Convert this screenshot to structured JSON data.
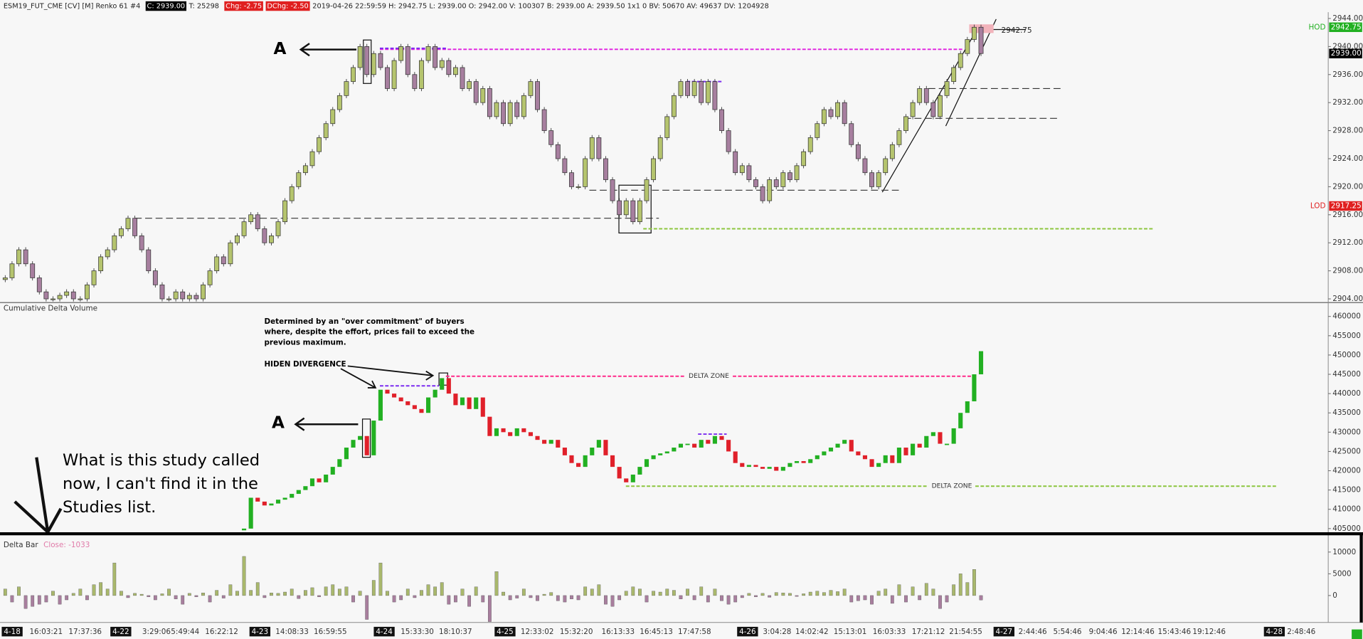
{
  "header": [
    {
      "text": "ESM19_FUT_CME [CV] [M]  Renko 61  #4"
    },
    {
      "text": "C: 2939.00",
      "badge": "#000000"
    },
    {
      "text": "T: 25298"
    },
    {
      "text": "Chg: -2.75",
      "badge": "#e02020"
    },
    {
      "text": "DChg: -2.50",
      "badge": "#e02020"
    },
    {
      "text": "2019-04-26 22:59:59  H: 2942.75  L: 2939.00  O: 2942.00  V: 100307  B: 2939.00  A: 2939.50  1x1 0  BV: 50670  AV: 49637  DV: 1204928"
    }
  ],
  "chart_data": [
    {
      "type": "renko",
      "up_color": "#b5c46e",
      "down_color": "#a77f9f",
      "ylim": [
        2903.6,
        2944.9
      ],
      "yticks": [
        {
          "value": 2944,
          "label": "2944.00"
        },
        {
          "value": 2940,
          "label": "2940.00"
        },
        {
          "value": 2936,
          "label": "2936.00"
        },
        {
          "value": 2932,
          "label": "2932.00"
        },
        {
          "value": 2928,
          "label": "2928.00"
        },
        {
          "value": 2924,
          "label": "2924.00"
        },
        {
          "value": 2920,
          "label": "2920.00"
        },
        {
          "value": 2916,
          "label": "2916.00"
        },
        {
          "value": 2912,
          "label": "2912.00"
        },
        {
          "value": 2908,
          "label": "2908.00"
        },
        {
          "value": 2904,
          "label": "2904.00"
        }
      ],
      "values": [
        2907,
        2909,
        2911,
        2909,
        2907,
        2905,
        2904,
        2904,
        2904.5,
        2905,
        2904,
        2904,
        2906,
        2908,
        2910,
        2911,
        2913,
        2914,
        2915.5,
        2913,
        2911,
        2908,
        2906,
        2904,
        2904,
        2905,
        2904,
        2904.5,
        2904,
        2906,
        2908,
        2910,
        2909,
        2912,
        2913,
        2915,
        2916,
        2914,
        2912,
        2913,
        2915,
        2918,
        2920,
        2922,
        2923,
        2925,
        2927,
        2929,
        2931,
        2933,
        2935,
        2937,
        2940,
        2936,
        2939,
        2937,
        2934,
        2938,
        2940,
        2936,
        2934,
        2938,
        2940,
        2937,
        2938,
        2936,
        2937,
        2934,
        2935,
        2932,
        2934,
        2930,
        2932,
        2929,
        2932,
        2930,
        2933,
        2935,
        2931,
        2928,
        2926,
        2924,
        2922,
        2920,
        2920,
        2924,
        2927,
        2924,
        2921,
        2918,
        2916,
        2918,
        2915,
        2918,
        2921,
        2924,
        2927,
        2930,
        2933,
        2935,
        2933,
        2935,
        2932,
        2935,
        2931,
        2928,
        2925,
        2922,
        2923,
        2921,
        2920,
        2918,
        2921,
        2920,
        2922,
        2921,
        2923,
        2925,
        2927,
        2929,
        2931,
        2930,
        2932,
        2929,
        2926,
        2924,
        2922,
        2920,
        2922,
        2924,
        2926,
        2928,
        2930,
        2932,
        2934,
        2932,
        2930,
        2933,
        2935,
        2937,
        2939,
        2941,
        2942.75,
        2939
      ],
      "levels": [
        {
          "value": 2939.6,
          "color": "#e020e0"
        },
        {
          "value": 2939.75,
          "color": "#7b2cf0"
        },
        {
          "value": 2935,
          "color": "#7b2cf0"
        },
        {
          "value": 2934,
          "color": "#333333"
        },
        {
          "value": 2929.75,
          "color": "#333333"
        },
        {
          "value": 2919.5,
          "color": "#333333"
        },
        {
          "value": 2915.5,
          "color": "#333333"
        },
        {
          "value": 2914,
          "color": "#8cc63f"
        }
      ],
      "badges": [
        {
          "name": "HOD",
          "value": 2942.75,
          "label": "2942.75",
          "color": "#22b022"
        },
        {
          "value": 2939,
          "label": "2939.00",
          "color": "#000000"
        },
        {
          "name": "LOD",
          "value": 2917.25,
          "label": "2917.25",
          "color": "#e02020"
        }
      ],
      "high_label": {
        "value": 2942.75,
        "label": "2942.75"
      }
    },
    {
      "type": "candlestick",
      "title": "Cumulative Delta Volume",
      "up_color": "#22b022",
      "down_color": "#e0202a",
      "ylim": [
        404100,
        463380
      ],
      "yticks": [
        460000,
        455000,
        450000,
        445000,
        440000,
        435000,
        430000,
        425000,
        420000,
        415000,
        410000,
        405000
      ],
      "values": [
        null,
        null,
        null,
        null,
        null,
        null,
        null,
        null,
        null,
        null,
        null,
        null,
        null,
        null,
        null,
        null,
        null,
        null,
        null,
        null,
        null,
        null,
        null,
        null,
        null,
        null,
        null,
        null,
        null,
        null,
        null,
        null,
        null,
        null,
        null,
        405000,
        413000,
        412000,
        411000,
        411500,
        412500,
        413000,
        414000,
        415000,
        416000,
        418000,
        417000,
        419000,
        421000,
        423000,
        426000,
        428000,
        429000,
        424000,
        433000,
        441000,
        440000,
        439000,
        438000,
        437000,
        436000,
        435000,
        439000,
        441000,
        444000,
        440000,
        437000,
        439000,
        436000,
        439000,
        434000,
        429000,
        431000,
        430000,
        429000,
        431000,
        430000,
        429000,
        428000,
        427000,
        428000,
        426000,
        424000,
        422000,
        421000,
        424000,
        426000,
        428000,
        424000,
        421000,
        418000,
        417000,
        419000,
        421000,
        423000,
        424000,
        424500,
        425000,
        426000,
        427000,
        427000,
        426000,
        428000,
        427000,
        429000,
        428000,
        425000,
        422000,
        421000,
        421500,
        421000,
        420500,
        421000,
        420000,
        421000,
        422000,
        422500,
        422000,
        423000,
        424000,
        425000,
        426000,
        427000,
        428000,
        425000,
        424000,
        423000,
        421000,
        422000,
        424000,
        422000,
        426000,
        424000,
        427000,
        426000,
        429000,
        430000,
        427000,
        427000,
        431000,
        435000,
        438000,
        445000,
        451000
      ],
      "levels": [
        {
          "value": 444500,
          "color": "#ff2a8a",
          "label": "DELTA ZONE"
        },
        {
          "value": 442000,
          "color": "#7b2cf0"
        },
        {
          "value": 429500,
          "color": "#7b2cf0"
        },
        {
          "value": 416000,
          "color": "#8cc63f",
          "label": "DELTA ZONE"
        }
      ]
    },
    {
      "type": "bar",
      "title": "Delta Bar",
      "subtitle": "Close: -1033",
      "pos_color": "#a9b86c",
      "neg_color": "#a87e9e",
      "ylim": [
        -6000,
        13200
      ],
      "yticks": [
        10000,
        5000,
        0
      ],
      "values": [
        1500,
        -1500,
        2000,
        -3000,
        -2500,
        -2000,
        -1500,
        1000,
        -2000,
        -1000,
        500,
        1500,
        -1000,
        2500,
        3000,
        1500,
        7500,
        1000,
        -500,
        500,
        300,
        -300,
        -1000,
        400,
        1500,
        -800,
        -2000,
        500,
        -300,
        600,
        -1500,
        1200,
        -600,
        2500,
        1000,
        9000,
        1200,
        3000,
        -500,
        600,
        500,
        800,
        1500,
        -700,
        1200,
        1800,
        -300,
        2000,
        2500,
        1500,
        2000,
        -1500,
        1000,
        -5500,
        3500,
        7500,
        1000,
        -1500,
        -1000,
        1500,
        -500,
        1200,
        2500,
        2000,
        3000,
        -2000,
        -1500,
        1500,
        -2500,
        2000,
        -1500,
        -6000,
        5500,
        800,
        -1000,
        -600,
        1500,
        -500,
        -1200,
        300,
        700,
        -1200,
        -1500,
        -800,
        -1000,
        2000,
        1500,
        2500,
        -2000,
        -2500,
        -1000,
        1000,
        2000,
        1500,
        -1500,
        1000,
        800,
        1500,
        1200,
        -800,
        1500,
        -1000,
        2000,
        -1500,
        1500,
        -1200,
        -2000,
        -1500,
        -500,
        500,
        -300,
        500,
        -400,
        700,
        600,
        500,
        -200,
        400,
        800,
        1000,
        700,
        1200,
        900,
        1500,
        -1500,
        -1200,
        -1000,
        -2000,
        1000,
        1500,
        -1800,
        2500,
        -1500,
        2000,
        -1000,
        2800,
        1500,
        -3000,
        -1500,
        2500,
        5000,
        3000,
        6000,
        -1033
      ]
    }
  ],
  "x_labels": [
    {
      "text": "4-18",
      "badge": true
    },
    {
      "text": "16:03:21"
    },
    {
      "text": "17:37:36"
    },
    {
      "text": "4-22",
      "badge": true
    },
    {
      "text": "3:29:06"
    },
    {
      "text": "5:49:44"
    },
    {
      "text": "16:22:12"
    },
    {
      "text": "4-23",
      "badge": true
    },
    {
      "text": "14:08:33"
    },
    {
      "text": "16:59:55"
    },
    {
      "text": "4-24",
      "badge": true
    },
    {
      "text": "15:33:30"
    },
    {
      "text": "18:10:37"
    },
    {
      "text": "4-25",
      "badge": true
    },
    {
      "text": "12:33:02"
    },
    {
      "text": "15:32:20"
    },
    {
      "text": "16:13:33"
    },
    {
      "text": "16:45:13"
    },
    {
      "text": "17:47:58"
    },
    {
      "text": "4-26",
      "badge": true
    },
    {
      "text": "3:04:28"
    },
    {
      "text": "14:02:42"
    },
    {
      "text": "15:13:01"
    },
    {
      "text": "16:03:33"
    },
    {
      "text": "17:21:12"
    },
    {
      "text": "21:54:55"
    },
    {
      "text": "4-27",
      "badge": true
    },
    {
      "text": "2:44:46"
    },
    {
      "text": "5:54:46"
    },
    {
      "text": "9:04:46"
    },
    {
      "text": "12:14:46"
    },
    {
      "text": "15:43:46"
    },
    {
      "text": "19:12:46"
    },
    {
      "text": "4-28",
      "badge": true
    },
    {
      "text": "2:48:46"
    }
  ],
  "annotations": {
    "marker_top": "A",
    "marker_bottom": "A",
    "note": [
      "Determined by an \"over commitment\" of buyers",
      "where, despite the effort, prices fail to exceed the",
      "previous maximum."
    ],
    "divergence": "HIDEN DIVERGENCE",
    "question": [
      "What is this study called",
      "now, I can't find it in the",
      "Studies list."
    ]
  }
}
